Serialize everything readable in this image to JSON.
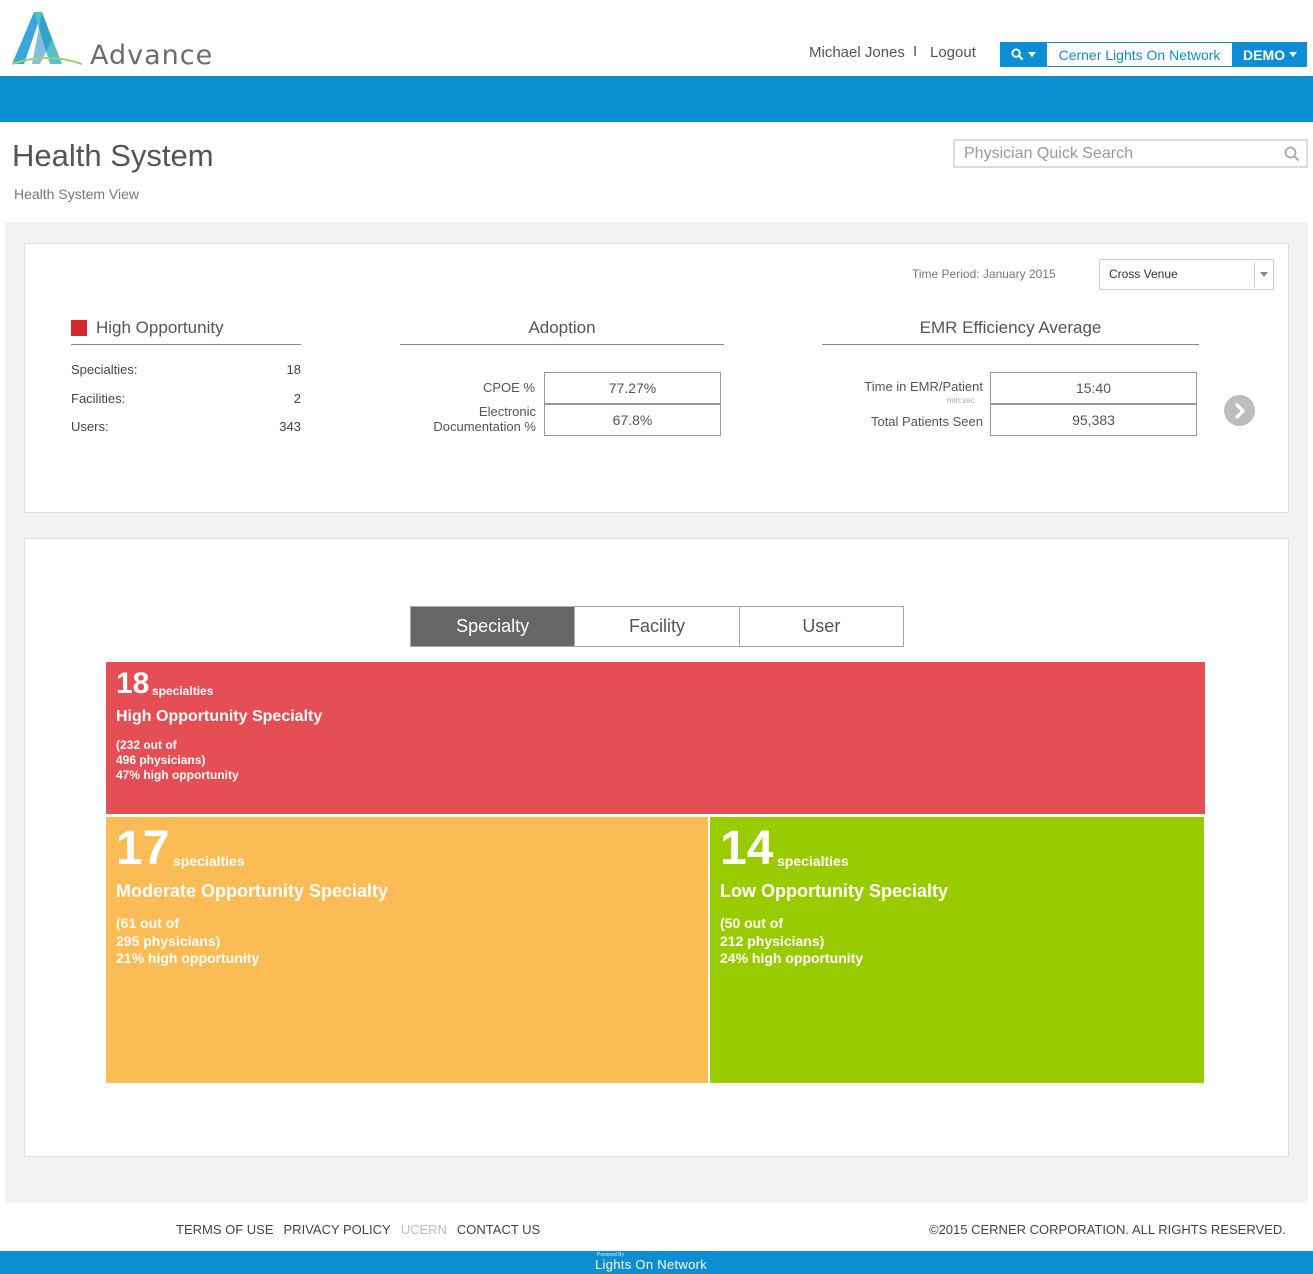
{
  "header": {
    "brand": "Advance",
    "user_name": "Michael Jones",
    "separator": "I",
    "logout": "Logout",
    "network": "Cerner Lights On Network",
    "demo": "DEMO"
  },
  "page": {
    "title": "Health System",
    "subtitle": "Health System View",
    "search_placeholder": "Physician Quick Search"
  },
  "summary": {
    "time_period": "Time Period: January 2015",
    "venue": "Cross Venue",
    "high_opportunity": {
      "heading": "High Opportunity",
      "rows": [
        {
          "label": "Specialties:",
          "value": "18"
        },
        {
          "label": "Facilities:",
          "value": "2"
        },
        {
          "label": "Users:",
          "value": "343"
        }
      ]
    },
    "adoption": {
      "heading": "Adoption",
      "cpoe_label": "CPOE %",
      "cpoe_value": "77.27%",
      "edoc_label_line1": "Electronic",
      "edoc_label_line2": "Documentation %",
      "edoc_value": "67.8%"
    },
    "emr": {
      "heading": "EMR Efficiency Average",
      "time_label": "Time in EMR/Patient",
      "time_unit": "min:sec",
      "time_value": "15:40",
      "patients_label": "Total Patients Seen",
      "patients_value": "95,383"
    }
  },
  "tabs": [
    "Specialty",
    "Facility",
    "User"
  ],
  "active_tab": "Specialty",
  "treemap": {
    "high": {
      "count": "18",
      "unit": "specialties",
      "name": "High Opportunity Specialty",
      "line1": "(232 out of",
      "line2": "496 physicians)",
      "line3": "47% high opportunity",
      "color": "#e54e55"
    },
    "moderate": {
      "count": "17",
      "unit": "specialties",
      "name": "Moderate Opportunity Specialty",
      "line1": "(61 out of",
      "line2": "295 physicians)",
      "line3": "21% high opportunity",
      "color": "#fbbb55"
    },
    "low": {
      "count": "14",
      "unit": "specialties",
      "name": "Low Opportunity Specialty",
      "line1": "(50 out of",
      "line2": "212 physicians)",
      "line3": "24% high opportunity",
      "color": "#99cc00"
    }
  },
  "footer": {
    "links": [
      "TERMS OF USE",
      "PRIVACY POLICY",
      "UCERN",
      "CONTACT US"
    ],
    "copyright": "©2015 CERNER CORPORATION. ALL RIGHTS RESERVED.",
    "powered_by": "Powered By",
    "network_name": "Lights On Network"
  },
  "colors": {
    "brand_blue": "#0e8ed2",
    "high_red": "#d9272e"
  },
  "icons": [
    "search-icon",
    "chevron-down-icon",
    "chevron-right-circle-icon",
    "advance-logo"
  ]
}
